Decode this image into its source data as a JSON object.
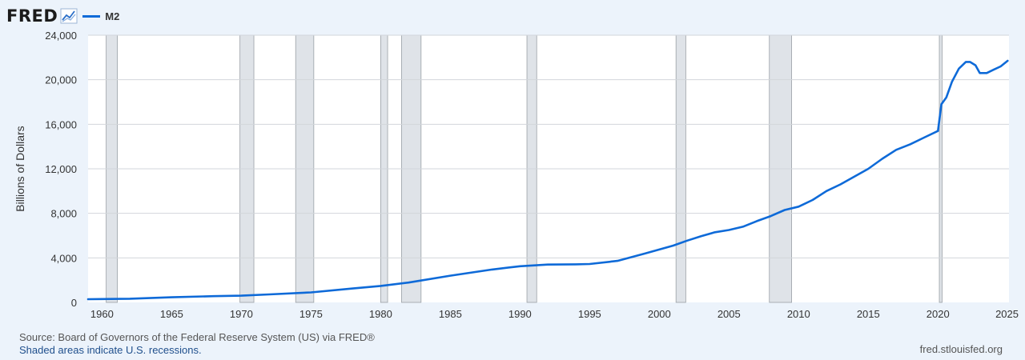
{
  "header": {
    "logo_text": "FRED",
    "logo_icon": "line-chart-icon",
    "series_label": "M2"
  },
  "footer": {
    "source": "Source: Board of Governors of the Federal Reserve System (US) via FRED®",
    "note": "Shaded areas indicate U.S. recessions.",
    "site": "fred.stlouisfed.org"
  },
  "colors": {
    "line": "#0e6ad8",
    "recession": "#dfe3e8",
    "recession_edge": "#9aa0a6",
    "grid": "#d2d6db",
    "background": "#ffffff"
  },
  "chart_data": {
    "type": "line",
    "ylabel": "Billions of Dollars",
    "xlim": [
      1959.0,
      2025.1
    ],
    "ylim": [
      0,
      24000
    ],
    "x_ticks": [
      1960,
      1965,
      1970,
      1975,
      1980,
      1985,
      1990,
      1995,
      2000,
      2005,
      2010,
      2015,
      2020,
      2025
    ],
    "y_ticks": [
      0,
      4000,
      8000,
      12000,
      16000,
      20000,
      24000
    ],
    "y_tick_labels": [
      "0",
      "4,000",
      "8,000",
      "12,000",
      "16,000",
      "20,000",
      "24,000"
    ],
    "grid": true,
    "legend_position": "top-left",
    "recessions": [
      [
        1960.3,
        1961.1
      ],
      [
        1969.9,
        1970.9
      ],
      [
        1973.9,
        1975.2
      ],
      [
        1980.0,
        1980.5
      ],
      [
        1981.5,
        1982.9
      ],
      [
        1990.5,
        1991.2
      ],
      [
        2001.2,
        2001.9
      ],
      [
        2007.9,
        2009.5
      ],
      [
        2020.1,
        2020.3
      ]
    ],
    "series": [
      {
        "name": "M2",
        "x": [
          1959.0,
          1960,
          1962,
          1965,
          1968,
          1970,
          1972,
          1975,
          1978,
          1980,
          1982,
          1985,
          1988,
          1990,
          1992,
          1994,
          1995,
          1997,
          1999,
          2000,
          2001,
          2002,
          2003,
          2004,
          2005,
          2006,
          2007,
          2008,
          2009,
          2010,
          2011,
          2012,
          2013,
          2014,
          2015,
          2016,
          2017,
          2018,
          2019,
          2020.0,
          2020.25,
          2020.6,
          2021.0,
          2021.5,
          2022.0,
          2022.3,
          2022.7,
          2023.0,
          2023.5,
          2024.0,
          2024.5,
          2025.0
        ],
        "y": [
          287,
          300,
          330,
          460,
          560,
          600,
          720,
          900,
          1250,
          1480,
          1780,
          2400,
          2950,
          3250,
          3400,
          3420,
          3450,
          3730,
          4400,
          4750,
          5100,
          5550,
          5950,
          6300,
          6500,
          6800,
          7300,
          7750,
          8300,
          8600,
          9200,
          10000,
          10600,
          11300,
          12000,
          12900,
          13700,
          14200,
          14800,
          15400,
          17800,
          18400,
          19800,
          21000,
          21600,
          21600,
          21300,
          20600,
          20600,
          20900,
          21200,
          21700
        ]
      }
    ]
  }
}
